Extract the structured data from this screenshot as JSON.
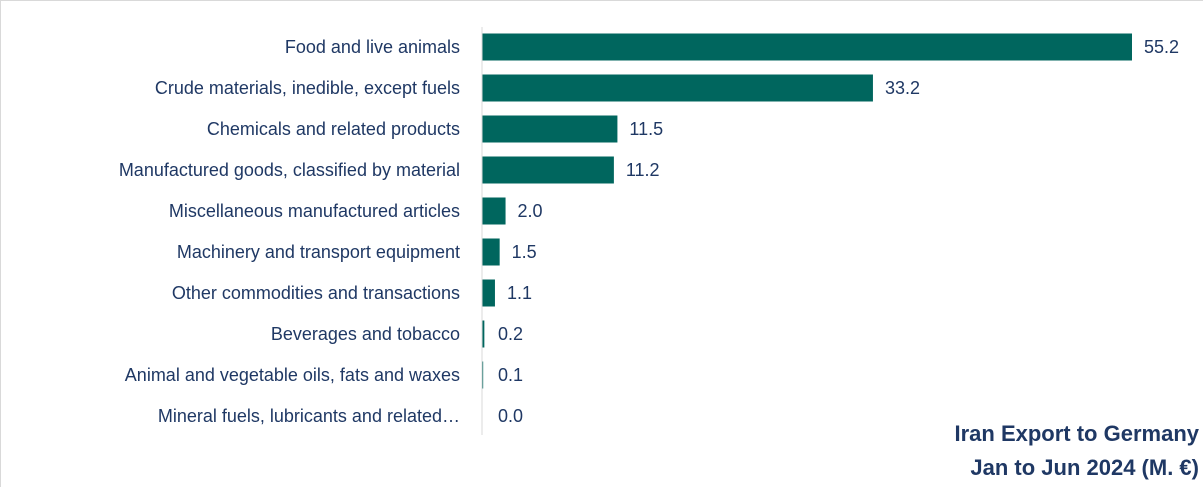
{
  "chart_data": {
    "type": "bar",
    "orientation": "horizontal",
    "title_line1": "Iran Export to Germany",
    "title_line2": "Jan to Jun 2024 (M. €)",
    "categories": [
      "Food and live animals",
      "Crude materials, inedible, except fuels",
      "Chemicals and related products",
      "Manufactured goods, classified by material",
      "Miscellaneous manufactured articles",
      "Machinery and transport equipment",
      "Other commodities and transactions",
      "Beverages and tobacco",
      "Animal and vegetable oils, fats and waxes",
      "Mineral fuels, lubricants and related…"
    ],
    "values": [
      55.2,
      33.2,
      11.5,
      11.2,
      2.0,
      1.5,
      1.1,
      0.2,
      0.1,
      0.0
    ],
    "value_labels": [
      "55.2",
      "33.2",
      "11.5",
      "11.2",
      "2.0",
      "1.5",
      "1.1",
      "0.2",
      "0.1",
      "0.0"
    ],
    "bar_color": "#00665e",
    "text_color": "#1f3864",
    "grid": false,
    "legend": "none"
  }
}
